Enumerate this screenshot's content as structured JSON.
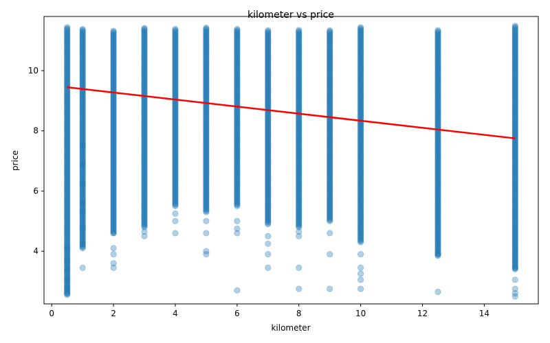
{
  "chart_data": {
    "type": "scatter",
    "title": "kilometer vs price",
    "xlabel": "kilometer",
    "ylabel": "price",
    "xlim": [
      -0.25,
      15.75
    ],
    "ylim": [
      2.25,
      11.8
    ],
    "xticks": [
      0,
      2,
      4,
      6,
      8,
      10,
      12,
      14
    ],
    "yticks": [
      4,
      6,
      8,
      10
    ],
    "grid": false,
    "point_color": "#1f77b4",
    "point_alpha": 0.35,
    "line_color": "#ff0000",
    "columns": [
      {
        "x": 0.5,
        "ymin": 2.55,
        "ymax": 11.45,
        "outliers": [
          2.6,
          2.8,
          3.05,
          3.4,
          3.7,
          4.1
        ]
      },
      {
        "x": 1,
        "ymin": 4.1,
        "ymax": 11.4,
        "outliers": [
          3.45,
          4.25,
          4.8,
          5.3,
          5.6,
          6.25,
          6.9,
          7.5
        ]
      },
      {
        "x": 2,
        "ymin": 4.6,
        "ymax": 11.35,
        "outliers": [
          3.45,
          3.6,
          3.9,
          4.1,
          4.6
        ]
      },
      {
        "x": 3,
        "ymin": 4.8,
        "ymax": 11.45,
        "outliers": [
          4.5,
          4.65
        ]
      },
      {
        "x": 4,
        "ymin": 5.5,
        "ymax": 11.4,
        "outliers": [
          4.6,
          5.0,
          5.25
        ]
      },
      {
        "x": 5,
        "ymin": 5.3,
        "ymax": 11.45,
        "outliers": [
          3.9,
          4.0,
          4.6,
          5.0
        ]
      },
      {
        "x": 6,
        "ymin": 5.5,
        "ymax": 11.4,
        "outliers": [
          2.7,
          4.6,
          4.75,
          5.0
        ]
      },
      {
        "x": 7,
        "ymin": 4.9,
        "ymax": 11.35,
        "outliers": [
          3.45,
          3.9,
          4.25,
          4.5
        ]
      },
      {
        "x": 8,
        "ymin": 4.8,
        "ymax": 11.35,
        "outliers": [
          2.75,
          3.45,
          4.5,
          4.65
        ]
      },
      {
        "x": 9,
        "ymin": 5.0,
        "ymax": 11.35,
        "outliers": [
          2.75,
          3.9,
          4.6
        ]
      },
      {
        "x": 10,
        "ymin": 4.3,
        "ymax": 11.45,
        "outliers": [
          2.75,
          3.05,
          3.25,
          3.45,
          3.9
        ]
      },
      {
        "x": 12.5,
        "ymin": 3.85,
        "ymax": 11.35,
        "outliers": [
          2.65,
          3.9
        ]
      },
      {
        "x": 15,
        "ymin": 3.4,
        "ymax": 11.5,
        "outliers": [
          2.5,
          2.6,
          2.75,
          3.05,
          3.45
        ]
      }
    ],
    "regression": {
      "x": [
        0.5,
        15
      ],
      "y": [
        9.45,
        7.75
      ]
    }
  }
}
